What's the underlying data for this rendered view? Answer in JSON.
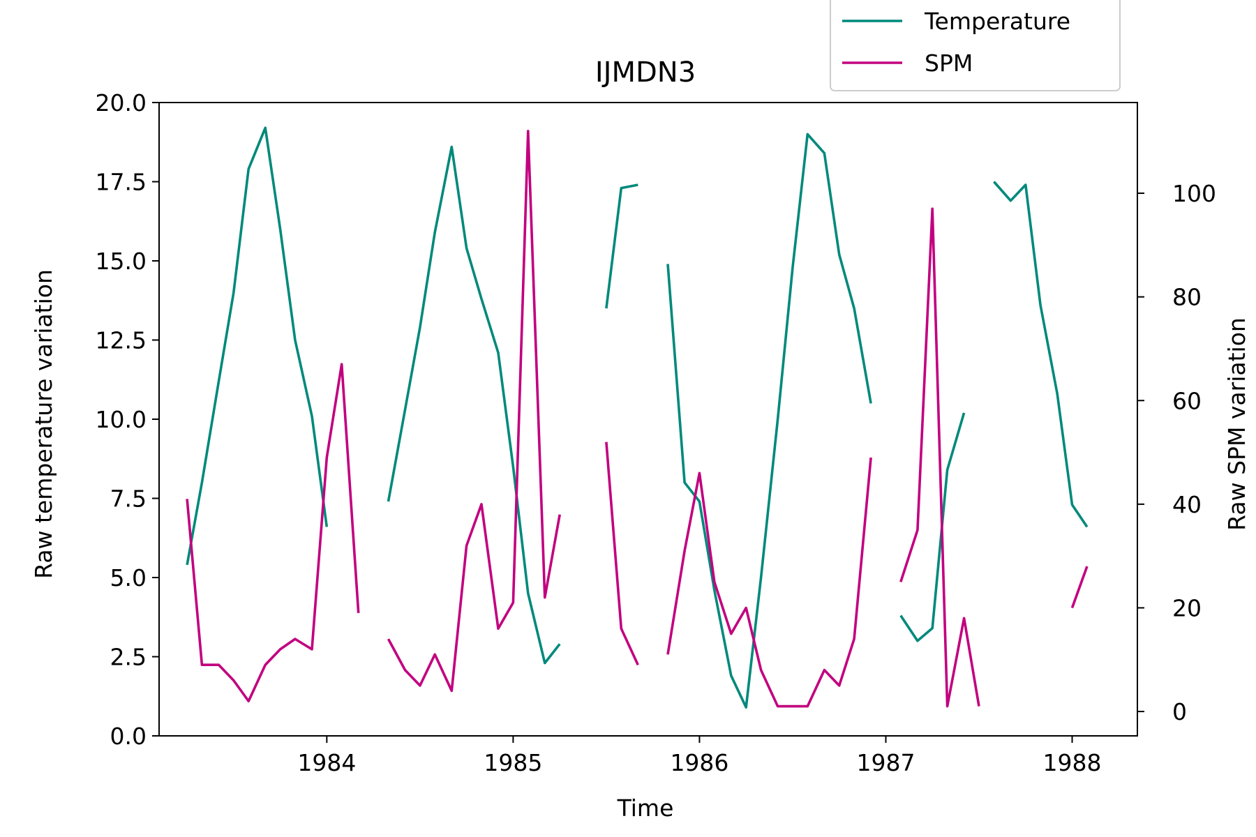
{
  "chart_data": {
    "type": "line",
    "title": "IJMDN3",
    "xlabel": "Time",
    "ylabel_left": "Raw temperature variation",
    "ylabel_right": "Raw SPM variation",
    "xlim": [
      1983.1,
      1988.35
    ],
    "ylim_left": [
      0,
      20
    ],
    "ylim_right": [
      -4.7,
      117.5
    ],
    "x_ticks": [
      1984,
      1985,
      1986,
      1987,
      1988
    ],
    "y_ticks_left": [
      "0.0",
      "2.5",
      "5.0",
      "7.5",
      "10.0",
      "12.5",
      "15.0",
      "17.5",
      "20.0"
    ],
    "y_ticks_right": [
      "0",
      "20",
      "40",
      "60",
      "80",
      "100"
    ],
    "grid": false,
    "legend_placement": "upper-right-outside",
    "series": [
      {
        "name": "Temperature",
        "axis": "left",
        "color": "#00897b",
        "segments": [
          [
            [
              1983.25,
              5.4
            ],
            [
              1983.33,
              8.0
            ],
            [
              1983.42,
              11.2
            ],
            [
              1983.5,
              14.0
            ],
            [
              1983.58,
              17.9
            ],
            [
              1983.67,
              19.2
            ],
            [
              1983.75,
              16.0
            ],
            [
              1983.83,
              12.5
            ],
            [
              1983.92,
              10.1
            ],
            [
              1984.0,
              6.6
            ]
          ],
          [
            [
              1984.33,
              7.4
            ],
            [
              1984.42,
              10.3
            ],
            [
              1984.5,
              12.9
            ],
            [
              1984.58,
              15.9
            ],
            [
              1984.67,
              18.6
            ],
            [
              1984.75,
              15.4
            ],
            [
              1984.83,
              13.8
            ],
            [
              1984.92,
              12.1
            ],
            [
              1985.0,
              8.5
            ],
            [
              1985.08,
              4.5
            ],
            [
              1985.17,
              2.3
            ],
            [
              1985.25,
              2.9
            ]
          ],
          [
            [
              1985.5,
              13.5
            ],
            [
              1985.58,
              17.3
            ],
            [
              1985.67,
              17.4
            ]
          ],
          [
            [
              1985.83,
              14.9
            ],
            [
              1985.92,
              8.0
            ],
            [
              1986.0,
              7.4
            ],
            [
              1986.08,
              4.6
            ],
            [
              1986.17,
              1.9
            ],
            [
              1986.25,
              0.9
            ],
            [
              1986.33,
              5.0
            ],
            [
              1986.42,
              10.0
            ],
            [
              1986.5,
              14.8
            ],
            [
              1986.58,
              19.0
            ],
            [
              1986.67,
              18.4
            ],
            [
              1986.75,
              15.2
            ],
            [
              1986.83,
              13.5
            ],
            [
              1986.92,
              10.5
            ]
          ],
          [
            [
              1987.08,
              3.8
            ],
            [
              1987.17,
              3.0
            ],
            [
              1987.25,
              3.4
            ],
            [
              1987.33,
              8.4
            ],
            [
              1987.42,
              10.2
            ]
          ],
          [
            [
              1987.58,
              17.5
            ],
            [
              1987.67,
              16.9
            ],
            [
              1987.75,
              17.4
            ],
            [
              1987.83,
              13.6
            ],
            [
              1987.92,
              10.8
            ],
            [
              1988.0,
              7.3
            ],
            [
              1988.08,
              6.6
            ]
          ]
        ]
      },
      {
        "name": "SPM",
        "axis": "right",
        "color": "#c2007f",
        "segments": [
          [
            [
              1983.25,
              41
            ],
            [
              1983.33,
              9
            ],
            [
              1983.42,
              9
            ],
            [
              1983.5,
              6
            ],
            [
              1983.58,
              2
            ],
            [
              1983.67,
              9
            ],
            [
              1983.75,
              12
            ],
            [
              1983.83,
              14
            ],
            [
              1983.92,
              12
            ],
            [
              1984.0,
              49
            ],
            [
              1984.08,
              67
            ],
            [
              1984.17,
              19
            ]
          ],
          [
            [
              1984.33,
              14
            ],
            [
              1984.42,
              8
            ],
            [
              1984.5,
              5
            ],
            [
              1984.58,
              11
            ],
            [
              1984.67,
              4
            ],
            [
              1984.75,
              32
            ],
            [
              1984.83,
              40
            ],
            [
              1984.92,
              16
            ],
            [
              1985.0,
              21
            ],
            [
              1985.08,
              112
            ],
            [
              1985.17,
              22
            ],
            [
              1985.25,
              38
            ]
          ],
          [
            [
              1985.5,
              52
            ],
            [
              1985.58,
              16
            ],
            [
              1985.67,
              9
            ]
          ],
          [
            [
              1985.83,
              11
            ],
            [
              1985.92,
              31
            ],
            [
              1986.0,
              46
            ],
            [
              1986.08,
              25
            ],
            [
              1986.17,
              15
            ],
            [
              1986.25,
              20
            ],
            [
              1986.33,
              8
            ],
            [
              1986.42,
              1
            ],
            [
              1986.5,
              1
            ],
            [
              1986.58,
              1
            ],
            [
              1986.67,
              8
            ],
            [
              1986.75,
              5
            ],
            [
              1986.83,
              14
            ],
            [
              1986.92,
              49
            ]
          ],
          [
            [
              1987.08,
              25
            ],
            [
              1987.17,
              35
            ],
            [
              1987.25,
              97
            ],
            [
              1987.33,
              1
            ],
            [
              1987.42,
              18
            ],
            [
              1987.5,
              1
            ]
          ],
          [
            [
              1988.0,
              20
            ],
            [
              1988.08,
              28
            ]
          ]
        ]
      }
    ]
  }
}
